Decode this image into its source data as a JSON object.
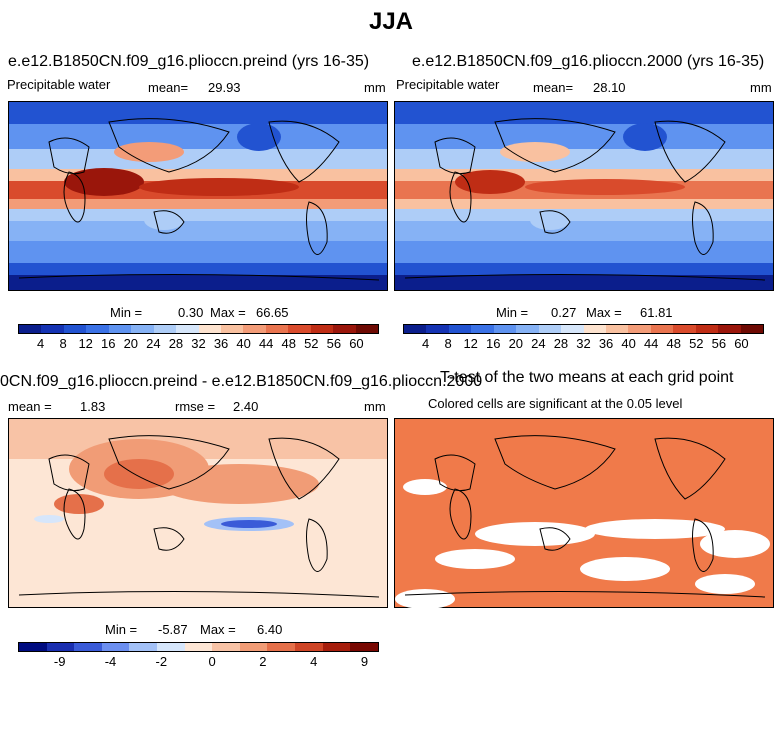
{
  "page": {
    "title": "JJA"
  },
  "panels": [
    {
      "id": "preind",
      "title": "e.e12.B1850CN.f09_g16.plioccn.preind (yrs 16-35)",
      "left_label": "Precipitable water",
      "mean_label": "mean=",
      "mean_value": "29.93",
      "units": "mm",
      "min_label": "Min =",
      "min_value": "0.30",
      "max_label": "Max =",
      "max_value": "66.65"
    },
    {
      "id": "y2000",
      "title": "e.e12.B1850CN.f09_g16.plioccn.2000 (yrs 16-35)",
      "left_label": "Precipitable water",
      "mean_label": "mean=",
      "mean_value": "28.10",
      "units": "mm",
      "min_label": "Min =",
      "min_value": "0.27",
      "max_label": "Max =",
      "max_value": "61.81"
    },
    {
      "id": "diff",
      "title": "0CN.f09_g16.plioccn.preind - e.e12.B1850CN.f09_g16.plioccn.2000",
      "mean_label": "mean =",
      "mean_value": "1.83",
      "rmse_label": "rmse =",
      "rmse_value": "2.40",
      "units": "mm",
      "min_label": "Min =",
      "min_value": "-5.87",
      "max_label": "Max =",
      "max_value": "6.40"
    },
    {
      "id": "ttest",
      "title": "T-test of the two means at each grid point",
      "subtitle": "Colored cells are significant at the 0.05 level"
    }
  ],
  "chart_data": [
    {
      "type": "heatmap",
      "title": "e.e12.B1850CN.f09_g16.plioccn.preind (yrs 16-35)",
      "variable": "Precipitable water",
      "units": "mm",
      "mean": 29.93,
      "min": 0.3,
      "max": 66.65,
      "colorbar_ticks": [
        "4",
        "8",
        "12",
        "16",
        "20",
        "24",
        "28",
        "32",
        "36",
        "40",
        "44",
        "48",
        "52",
        "56",
        "60"
      ]
    },
    {
      "type": "heatmap",
      "title": "e.e12.B1850CN.f09_g16.plioccn.2000 (yrs 16-35)",
      "variable": "Precipitable water",
      "units": "mm",
      "mean": 28.1,
      "min": 0.27,
      "max": 61.81,
      "colorbar_ticks": [
        "4",
        "8",
        "12",
        "16",
        "20",
        "24",
        "28",
        "32",
        "36",
        "40",
        "44",
        "48",
        "52",
        "56",
        "60"
      ]
    },
    {
      "type": "heatmap",
      "title": "0CN.f09_g16.plioccn.preind - e.e12.B1850CN.f09_g16.plioccn.2000",
      "units": "mm",
      "mean": 1.83,
      "rmse": 2.4,
      "min": -5.87,
      "max": 6.4,
      "colorbar_ticks": [
        "-9",
        "-4",
        "-2",
        "0",
        "2",
        "4",
        "9"
      ]
    },
    {
      "type": "heatmap",
      "title": "T-test of the two means at each grid point",
      "subtitle": "Colored cells are significant at the 0.05 level"
    }
  ],
  "colors": {
    "abs_scale": [
      "#0b1e8c",
      "#1533b3",
      "#2253d1",
      "#3b72e6",
      "#5f93f0",
      "#86b2f5",
      "#aecdf7",
      "#d6e6fa",
      "#fde3cf",
      "#f9c1a0",
      "#f39c78",
      "#e9744f",
      "#d94b2c",
      "#bf2d15",
      "#9a160b",
      "#6e0a03"
    ],
    "diff_scale": [
      "#000c80",
      "#1a2fb0",
      "#3a5bd8",
      "#6c8ff0",
      "#a3c1f7",
      "#d6e6fb",
      "#fde6d5",
      "#f8c3a6",
      "#f19c76",
      "#e5704a",
      "#cf4526",
      "#a61e0c",
      "#780802"
    ],
    "ttest_fill": "#f07a4a"
  }
}
